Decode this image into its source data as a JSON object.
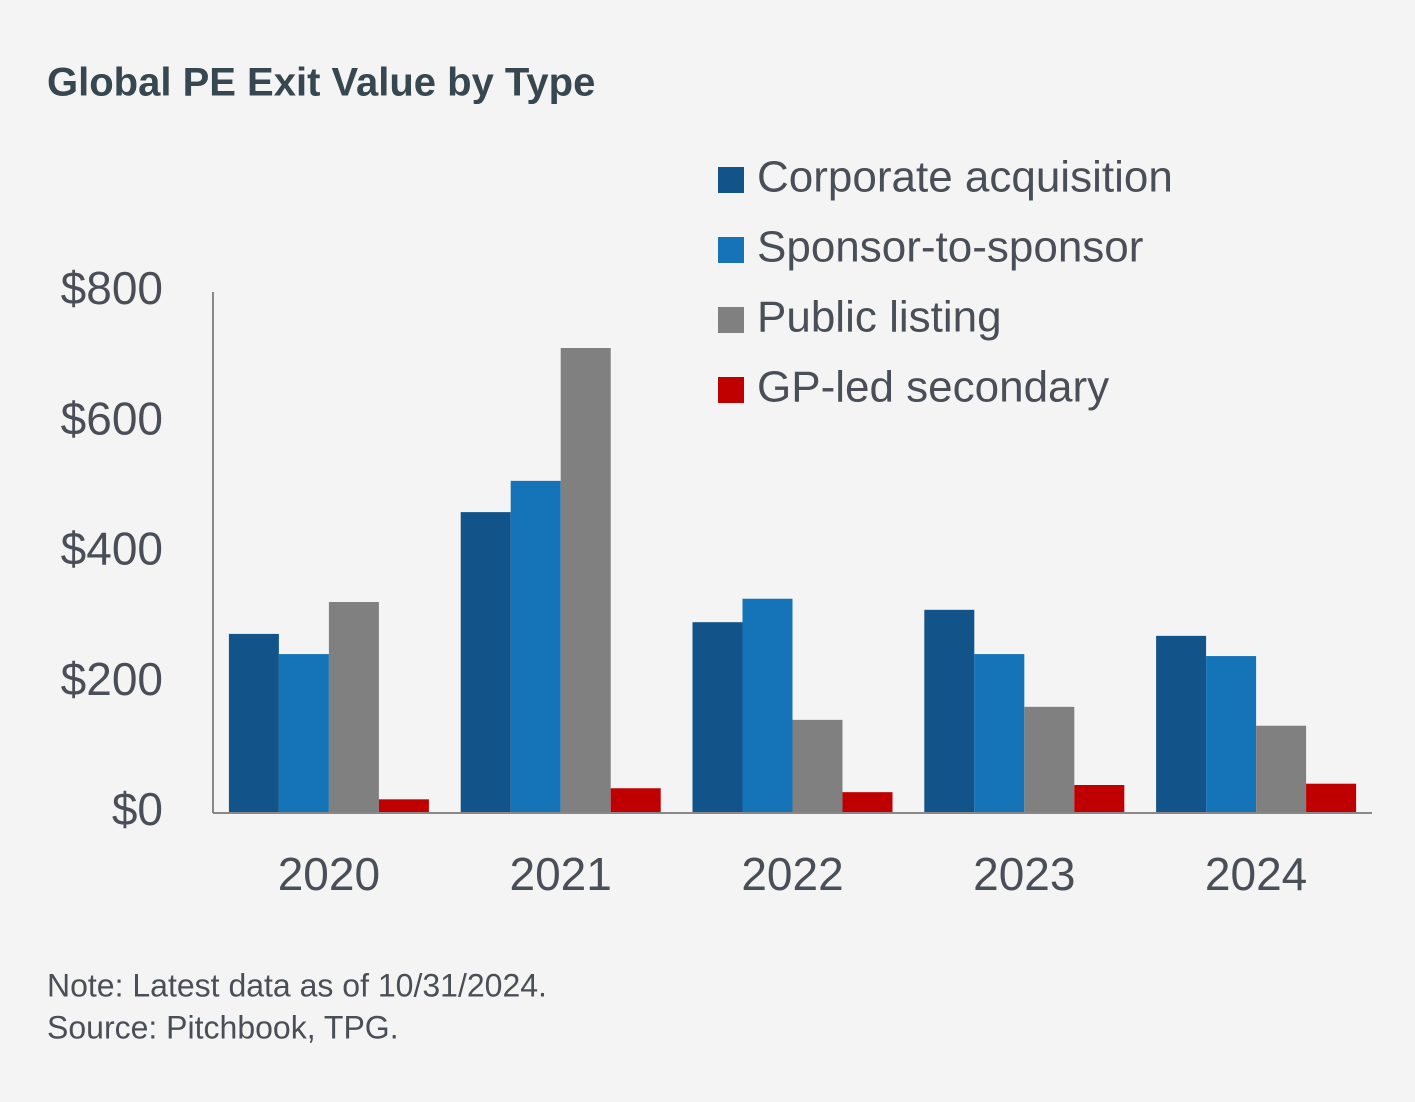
{
  "chart_data": {
    "type": "bar",
    "title": "Global PE Exit Value by Type",
    "categories": [
      "2020",
      "2021",
      "2022",
      "2023",
      "2024"
    ],
    "series": [
      {
        "name": "Corporate acquisition",
        "color": "#12548a",
        "values": [
          275,
          462,
          293,
          312,
          272
        ]
      },
      {
        "name": "Sponsor-to-sponsor",
        "color": "#1573b8",
        "values": [
          244,
          510,
          329,
          244,
          241
        ]
      },
      {
        "name": "Public listing",
        "color": "#808080",
        "values": [
          324,
          714,
          143,
          163,
          134
        ]
      },
      {
        "name": "GP-led secondary",
        "color": "#c00000",
        "values": [
          21,
          38,
          32,
          43,
          45
        ]
      }
    ],
    "ylim": [
      0,
      800
    ],
    "yticks": [
      {
        "value": 0,
        "label": "$0"
      },
      {
        "value": 200,
        "label": "$200"
      },
      {
        "value": 400,
        "label": "$400"
      },
      {
        "value": 600,
        "label": "$600"
      },
      {
        "value": 800,
        "label": "$800"
      }
    ],
    "legend": "top-right",
    "notes": [
      "Note: Latest data as of 10/31/2024.",
      "Source: Pitchbook, TPG."
    ]
  }
}
